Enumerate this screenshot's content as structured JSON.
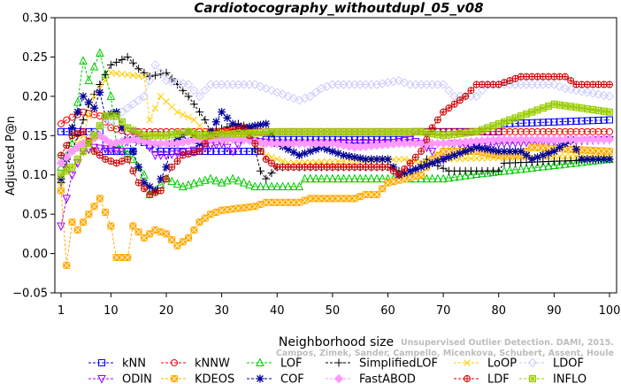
{
  "chart_data": {
    "type": "line",
    "title": "Cardiotocography_withoutdupl_05_v08",
    "xlabel": "Neighborhood size",
    "ylabel": "Adjusted P@n",
    "xlim": [
      0,
      100
    ],
    "ylim": [
      -0.05,
      0.3
    ],
    "xticks": [
      "1",
      "10",
      "20",
      "30",
      "40",
      "50",
      "60",
      "70",
      "80",
      "90",
      "100"
    ],
    "yticks": [
      "−0.05",
      "0.00",
      "0.05",
      "0.10",
      "0.15",
      "0.20",
      "0.25",
      "0.30"
    ],
    "grid": false,
    "legend_position": "bottom",
    "watermark": [
      "Unsupervised Outlier Detection. DAMI, 2015.",
      "Campos, Zimek, Sander, Campello, Micenkova, Schubert, Assent, Houle"
    ],
    "series": [
      {
        "name": "kNN",
        "color": "#0000ff",
        "marker": "square",
        "values": [
          [
            1,
            0.155
          ],
          [
            5,
            0.155
          ],
          [
            8,
            0.155
          ],
          [
            9,
            0.13
          ],
          [
            14,
            0.13
          ],
          [
            15,
            0.145
          ],
          [
            19,
            0.13
          ],
          [
            37,
            0.13
          ],
          [
            38,
            0.145
          ],
          [
            64,
            0.145
          ],
          [
            65,
            0.155
          ],
          [
            80,
            0.155
          ],
          [
            81,
            0.165
          ],
          [
            100,
            0.17
          ]
        ]
      },
      {
        "name": "kNNW",
        "color": "#ff0000",
        "marker": "circle",
        "values": [
          [
            1,
            0.165
          ],
          [
            2,
            0.17
          ],
          [
            5,
            0.18
          ],
          [
            8,
            0.175
          ],
          [
            10,
            0.16
          ],
          [
            13,
            0.155
          ],
          [
            100,
            0.155
          ]
        ]
      },
      {
        "name": "LOF",
        "color": "#00cc00",
        "marker": "triangle-up",
        "values": [
          [
            1,
            0.11
          ],
          [
            3,
            0.14
          ],
          [
            5,
            0.245
          ],
          [
            6,
            0.22
          ],
          [
            8,
            0.255
          ],
          [
            10,
            0.2
          ],
          [
            11,
            0.14
          ],
          [
            14,
            0.12
          ],
          [
            16,
            0.1
          ],
          [
            17,
            0.075
          ],
          [
            18,
            0.08
          ],
          [
            20,
            0.095
          ],
          [
            23,
            0.085
          ],
          [
            28,
            0.095
          ],
          [
            30,
            0.09
          ],
          [
            32,
            0.095
          ],
          [
            36,
            0.085
          ],
          [
            44,
            0.085
          ],
          [
            45,
            0.095
          ],
          [
            70,
            0.095
          ],
          [
            75,
            0.1
          ],
          [
            100,
            0.12
          ]
        ]
      },
      {
        "name": "SimplifiedLOF",
        "color": "#000000",
        "marker": "plus",
        "values": [
          [
            1,
            0.09
          ],
          [
            4,
            0.15
          ],
          [
            6,
            0.19
          ],
          [
            10,
            0.24
          ],
          [
            13,
            0.25
          ],
          [
            15,
            0.235
          ],
          [
            17,
            0.225
          ],
          [
            20,
            0.23
          ],
          [
            22,
            0.215
          ],
          [
            24,
            0.2
          ],
          [
            27,
            0.17
          ],
          [
            28,
            0.155
          ],
          [
            33,
            0.165
          ],
          [
            35,
            0.16
          ],
          [
            37,
            0.105
          ],
          [
            38,
            0.095
          ],
          [
            40,
            0.11
          ],
          [
            60,
            0.11
          ],
          [
            64,
            0.1
          ],
          [
            67,
            0.12
          ],
          [
            68,
            0.115
          ],
          [
            71,
            0.105
          ],
          [
            80,
            0.105
          ],
          [
            81,
            0.115
          ],
          [
            100,
            0.12
          ]
        ]
      },
      {
        "name": "LoOP",
        "color": "#ffcc00",
        "marker": "x",
        "values": [
          [
            1,
            0.09
          ],
          [
            3,
            0.13
          ],
          [
            5,
            0.15
          ],
          [
            7,
            0.2
          ],
          [
            10,
            0.23
          ],
          [
            16,
            0.225
          ],
          [
            17,
            0.17
          ],
          [
            19,
            0.2
          ],
          [
            22,
            0.18
          ],
          [
            25,
            0.17
          ],
          [
            27,
            0.155
          ],
          [
            36,
            0.155
          ],
          [
            38,
            0.125
          ],
          [
            42,
            0.115
          ],
          [
            63,
            0.12
          ],
          [
            66,
            0.115
          ],
          [
            70,
            0.12
          ],
          [
            100,
            0.125
          ]
        ]
      },
      {
        "name": "LDOF",
        "color": "#ccccff",
        "marker": "diamond",
        "values": [
          [
            1,
            0.12
          ],
          [
            5,
            0.14
          ],
          [
            8,
            0.16
          ],
          [
            12,
            0.18
          ],
          [
            16,
            0.2
          ],
          [
            18,
            0.24
          ],
          [
            20,
            0.22
          ],
          [
            24,
            0.215
          ],
          [
            26,
            0.2
          ],
          [
            28,
            0.215
          ],
          [
            36,
            0.215
          ],
          [
            38,
            0.21
          ],
          [
            44,
            0.195
          ],
          [
            46,
            0.2
          ],
          [
            48,
            0.21
          ],
          [
            50,
            0.215
          ],
          [
            58,
            0.215
          ],
          [
            62,
            0.22
          ],
          [
            64,
            0.215
          ],
          [
            70,
            0.215
          ],
          [
            72,
            0.2
          ],
          [
            76,
            0.2
          ],
          [
            78,
            0.215
          ],
          [
            90,
            0.215
          ],
          [
            92,
            0.21
          ],
          [
            100,
            0.2
          ]
        ]
      },
      {
        "name": "ODIN",
        "color": "#9900ff",
        "marker": "triangle-down",
        "values": [
          [
            1,
            0.035
          ],
          [
            2,
            0.07
          ],
          [
            3,
            0.1
          ],
          [
            5,
            0.13
          ],
          [
            7,
            0.135
          ],
          [
            12,
            0.13
          ],
          [
            14,
            0.155
          ],
          [
            16,
            0.145
          ],
          [
            18,
            0.125
          ],
          [
            20,
            0.125
          ],
          [
            24,
            0.13
          ],
          [
            30,
            0.14
          ],
          [
            32,
            0.13
          ],
          [
            34,
            0.145
          ],
          [
            40,
            0.14
          ],
          [
            60,
            0.14
          ],
          [
            64,
            0.145
          ],
          [
            66,
            0.14
          ],
          [
            70,
            0.12
          ],
          [
            72,
            0.14
          ],
          [
            76,
            0.135
          ],
          [
            80,
            0.14
          ],
          [
            100,
            0.145
          ]
        ]
      },
      {
        "name": "KDEOS",
        "color": "#ffaa00",
        "marker": "square-x",
        "values": [
          [
            1,
            0.08
          ],
          [
            2,
            -0.015
          ],
          [
            3,
            0.04
          ],
          [
            4,
            0.03
          ],
          [
            6,
            0.05
          ],
          [
            8,
            0.07
          ],
          [
            10,
            0.035
          ],
          [
            11,
            -0.005
          ],
          [
            13,
            -0.005
          ],
          [
            14,
            0.035
          ],
          [
            16,
            0.02
          ],
          [
            18,
            0.03
          ],
          [
            20,
            0.025
          ],
          [
            22,
            0.01
          ],
          [
            24,
            0.02
          ],
          [
            26,
            0.04
          ],
          [
            28,
            0.05
          ],
          [
            30,
            0.055
          ],
          [
            36,
            0.06
          ],
          [
            38,
            0.065
          ],
          [
            40,
            0.065
          ],
          [
            44,
            0.065
          ],
          [
            46,
            0.07
          ],
          [
            54,
            0.07
          ],
          [
            56,
            0.075
          ],
          [
            58,
            0.075
          ],
          [
            60,
            0.09
          ],
          [
            66,
            0.1
          ],
          [
            68,
            0.12
          ],
          [
            70,
            0.13
          ],
          [
            76,
            0.13
          ],
          [
            80,
            0.125
          ],
          [
            84,
            0.125
          ],
          [
            86,
            0.135
          ],
          [
            100,
            0.13
          ]
        ]
      },
      {
        "name": "COF",
        "color": "#000099",
        "marker": "star",
        "values": [
          [
            1,
            0.095
          ],
          [
            2,
            0.12
          ],
          [
            3,
            0.16
          ],
          [
            5,
            0.2
          ],
          [
            7,
            0.185
          ],
          [
            8,
            0.205
          ],
          [
            9,
            0.175
          ],
          [
            11,
            0.18
          ],
          [
            12,
            0.16
          ],
          [
            14,
            0.13
          ],
          [
            16,
            0.09
          ],
          [
            18,
            0.08
          ],
          [
            20,
            0.11
          ],
          [
            21,
            0.14
          ],
          [
            24,
            0.155
          ],
          [
            26,
            0.14
          ],
          [
            28,
            0.155
          ],
          [
            30,
            0.18
          ],
          [
            32,
            0.165
          ],
          [
            34,
            0.16
          ],
          [
            38,
            0.165
          ],
          [
            40,
            0.14
          ],
          [
            44,
            0.125
          ],
          [
            48,
            0.135
          ],
          [
            52,
            0.125
          ],
          [
            56,
            0.12
          ],
          [
            60,
            0.12
          ],
          [
            62,
            0.1
          ],
          [
            66,
            0.11
          ],
          [
            70,
            0.12
          ],
          [
            74,
            0.13
          ],
          [
            76,
            0.135
          ],
          [
            80,
            0.13
          ],
          [
            84,
            0.13
          ],
          [
            86,
            0.12
          ],
          [
            90,
            0.13
          ],
          [
            93,
            0.145
          ],
          [
            95,
            0.12
          ],
          [
            100,
            0.12
          ]
        ]
      },
      {
        "name": "FastABOD",
        "color": "#ff99ff",
        "marker": "diamond-filled",
        "values": [
          [
            1,
            0.115
          ],
          [
            3,
            0.13
          ],
          [
            5,
            0.14
          ],
          [
            8,
            0.15
          ],
          [
            10,
            0.14
          ],
          [
            14,
            0.145
          ],
          [
            18,
            0.14
          ],
          [
            22,
            0.14
          ],
          [
            26,
            0.145
          ],
          [
            34,
            0.145
          ],
          [
            38,
            0.14
          ],
          [
            50,
            0.14
          ],
          [
            54,
            0.135
          ],
          [
            62,
            0.14
          ],
          [
            70,
            0.14
          ],
          [
            80,
            0.145
          ],
          [
            100,
            0.145
          ]
        ]
      },
      {
        "name": "LDF",
        "color": "#cc0000",
        "marker": "circle-plus",
        "values": [
          [
            1,
            0.125
          ],
          [
            3,
            0.15
          ],
          [
            5,
            0.155
          ],
          [
            7,
            0.13
          ],
          [
            9,
            0.12
          ],
          [
            11,
            0.115
          ],
          [
            13,
            0.12
          ],
          [
            15,
            0.09
          ],
          [
            17,
            0.075
          ],
          [
            19,
            0.08
          ],
          [
            21,
            0.11
          ],
          [
            23,
            0.125
          ],
          [
            26,
            0.13
          ],
          [
            28,
            0.15
          ],
          [
            30,
            0.155
          ],
          [
            34,
            0.16
          ],
          [
            38,
            0.12
          ],
          [
            40,
            0.11
          ],
          [
            54,
            0.11
          ],
          [
            60,
            0.11
          ],
          [
            62,
            0.1
          ],
          [
            66,
            0.13
          ],
          [
            68,
            0.16
          ],
          [
            70,
            0.18
          ],
          [
            72,
            0.19
          ],
          [
            74,
            0.2
          ],
          [
            76,
            0.215
          ],
          [
            80,
            0.215
          ],
          [
            84,
            0.225
          ],
          [
            92,
            0.225
          ],
          [
            94,
            0.215
          ],
          [
            100,
            0.215
          ]
        ]
      },
      {
        "name": "INFLO",
        "color": "#99cc00",
        "marker": "asterisk-box",
        "values": [
          [
            1,
            0.1
          ],
          [
            3,
            0.11
          ],
          [
            5,
            0.13
          ],
          [
            7,
            0.15
          ],
          [
            9,
            0.175
          ],
          [
            11,
            0.175
          ],
          [
            13,
            0.16
          ],
          [
            16,
            0.15
          ],
          [
            20,
            0.15
          ],
          [
            24,
            0.155
          ],
          [
            26,
            0.15
          ],
          [
            40,
            0.155
          ],
          [
            60,
            0.155
          ],
          [
            66,
            0.155
          ],
          [
            70,
            0.15
          ],
          [
            76,
            0.155
          ],
          [
            80,
            0.165
          ],
          [
            82,
            0.17
          ],
          [
            86,
            0.18
          ],
          [
            90,
            0.19
          ],
          [
            100,
            0.18
          ]
        ]
      }
    ]
  }
}
